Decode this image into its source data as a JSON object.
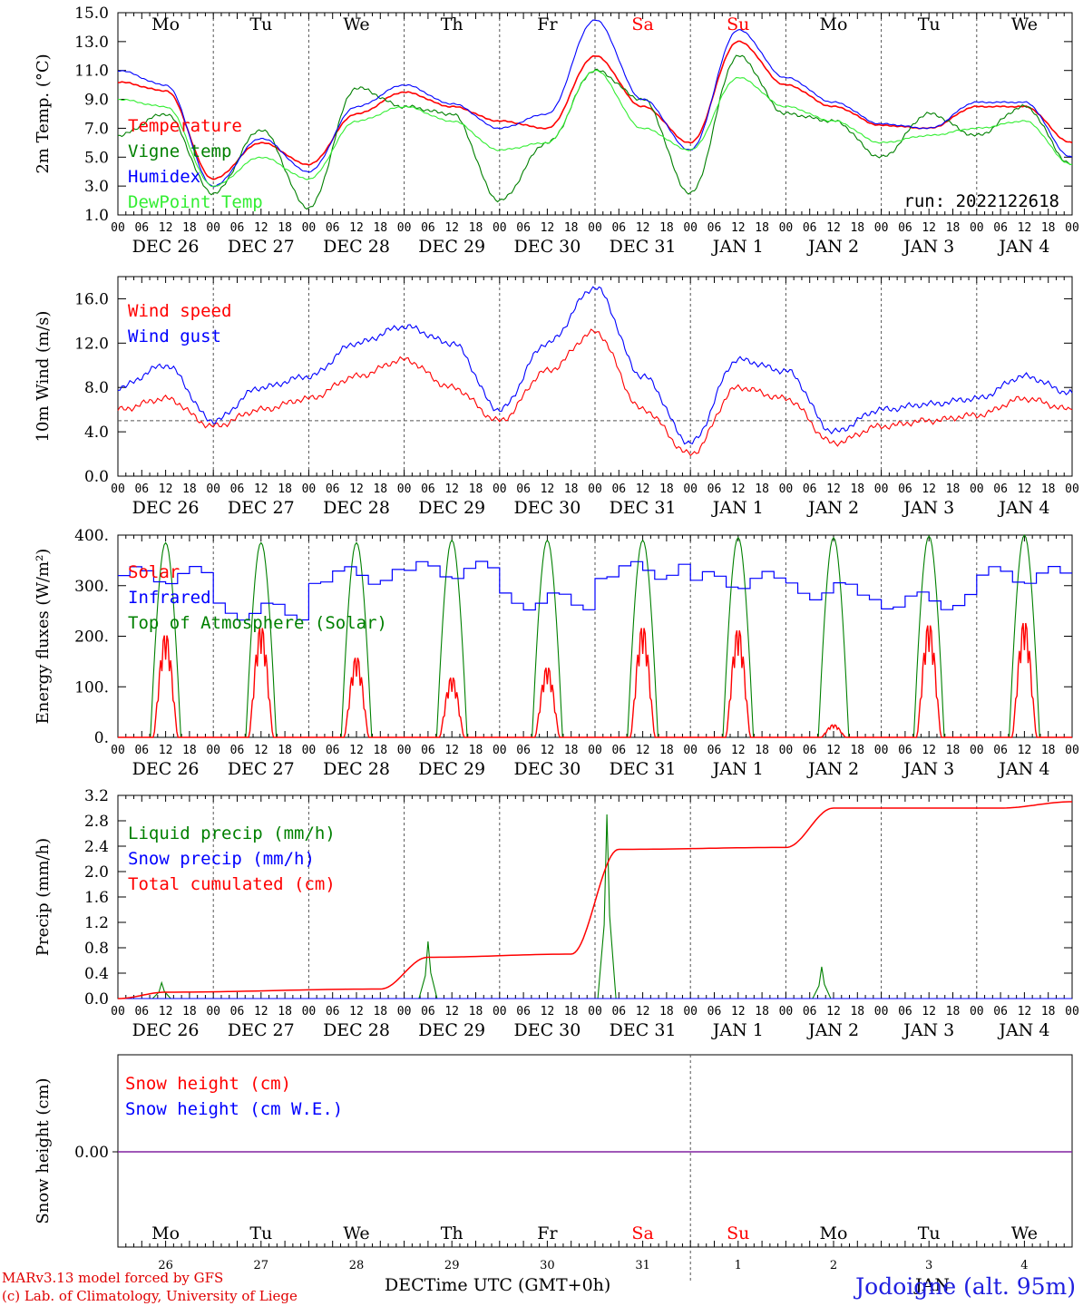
{
  "meteogram": {
    "station": "Jodoigne (alt. 95m)",
    "credits": [
      "MARv3.13 model forced by GFS",
      "(c) Lab. of Climatology, University of Liege"
    ],
    "time_axis_label": "DECTime UTC (GMT+0h)",
    "jan_label": "JAN",
    "run_label": "run: 2022122618"
  },
  "days": [
    {
      "weekday": "Mo",
      "date": "DEC 26",
      "day_num": "26",
      "weekend": false
    },
    {
      "weekday": "Tu",
      "date": "DEC 27",
      "day_num": "27",
      "weekend": false
    },
    {
      "weekday": "We",
      "date": "DEC 28",
      "day_num": "28",
      "weekend": false
    },
    {
      "weekday": "Th",
      "date": "DEC 29",
      "day_num": "29",
      "weekend": false
    },
    {
      "weekday": "Fr",
      "date": "DEC 30",
      "day_num": "30",
      "weekend": false
    },
    {
      "weekday": "Sa",
      "date": "DEC 31",
      "day_num": "31",
      "weekend": true
    },
    {
      "weekday": "Su",
      "date": "JAN  1",
      "day_num": "1",
      "weekend": true
    },
    {
      "weekday": "Mo",
      "date": "JAN  2",
      "day_num": "2",
      "weekend": false
    },
    {
      "weekday": "Tu",
      "date": "JAN  3",
      "day_num": "3",
      "weekend": false
    },
    {
      "weekday": "We",
      "date": "JAN  4",
      "day_num": "4",
      "weekend": false
    }
  ],
  "hour_ticks": [
    "00",
    "06",
    "12",
    "18"
  ],
  "colors": {
    "red": "#ff0000",
    "darkgreen": "#008000",
    "blue": "#0000ff",
    "lightgreen": "#33ee33",
    "purple": "#8020a0"
  },
  "chart_data": [
    {
      "type": "line",
      "ylabel": "2m Temp. (°C)",
      "ylim": [
        1.0,
        15.0
      ],
      "yticks": [
        "1.0",
        "3.0",
        "5.0",
        "7.0",
        "9.0",
        "11.0",
        "13.0",
        "15.0"
      ],
      "x": [
        "DEC 26 00",
        "DEC 26 12",
        "DEC 27 00",
        "DEC 27 12",
        "DEC 28 00",
        "DEC 28 12",
        "DEC 29 00",
        "DEC 29 12",
        "DEC 30 00",
        "DEC 30 12",
        "DEC 31 00",
        "DEC 31 12",
        "JAN 1 00",
        "JAN 1 12",
        "JAN 2 00",
        "JAN 2 12",
        "JAN 3 00",
        "JAN 3 12",
        "JAN 4 00",
        "JAN 4 12",
        "JAN 5 00"
      ],
      "series": [
        {
          "name": "Temperature",
          "color": "#ff0000",
          "values": [
            10.2,
            9.6,
            3.5,
            6.0,
            4.5,
            8.0,
            9.5,
            8.5,
            7.5,
            7.0,
            12.0,
            8.5,
            6.0,
            13.0,
            10.0,
            8.5,
            7.2,
            7.0,
            8.5,
            8.5,
            6.0
          ]
        },
        {
          "name": "Vigne temp",
          "color": "#008000",
          "values": [
            6.5,
            8.0,
            2.5,
            6.9,
            1.5,
            9.8,
            8.5,
            8.0,
            2.0,
            6.0,
            11.0,
            9.0,
            2.5,
            12.0,
            8.0,
            7.5,
            5.0,
            8.0,
            6.5,
            8.5,
            4.5
          ]
        },
        {
          "name": "Humidex",
          "color": "#0000ff",
          "values": [
            11.0,
            10.0,
            3.0,
            6.3,
            4.0,
            8.5,
            10.0,
            8.7,
            7.0,
            8.0,
            14.5,
            9.0,
            5.5,
            13.8,
            10.5,
            8.8,
            7.3,
            7.0,
            8.8,
            8.8,
            5.0
          ]
        },
        {
          "name": "DewPoint Temp",
          "color": "#33ee33",
          "values": [
            9.0,
            8.5,
            3.0,
            5.0,
            3.5,
            7.5,
            8.5,
            7.5,
            5.5,
            6.0,
            11.0,
            7.0,
            5.5,
            10.5,
            8.5,
            7.5,
            6.0,
            6.5,
            7.0,
            7.5,
            4.5
          ]
        }
      ]
    },
    {
      "type": "line",
      "ylabel": "10m Wind (m/s)",
      "ylim": [
        0.0,
        18.0
      ],
      "yticks": [
        "0.0",
        "4.0",
        "8.0",
        "12.0",
        "16.0"
      ],
      "reference_line": 5.0,
      "x": [
        "DEC 26 00",
        "DEC 26 12",
        "DEC 27 00",
        "DEC 27 12",
        "DEC 28 00",
        "DEC 28 12",
        "DEC 29 00",
        "DEC 29 12",
        "DEC 30 00",
        "DEC 30 12",
        "DEC 31 00",
        "DEC 31 12",
        "JAN 1 00",
        "JAN 1 12",
        "JAN 2 00",
        "JAN 2 12",
        "JAN 3 00",
        "JAN 3 12",
        "JAN 4 00",
        "JAN 4 12",
        "JAN 5 00"
      ],
      "series": [
        {
          "name": "Wind speed",
          "color": "#ff0000",
          "values": [
            6.0,
            7.0,
            4.5,
            6.0,
            7.0,
            9.0,
            10.5,
            8.0,
            5.0,
            9.5,
            13.0,
            6.0,
            2.0,
            8.0,
            7.0,
            3.0,
            4.5,
            5.0,
            5.5,
            7.0,
            6.0
          ]
        },
        {
          "name": "Wind gust",
          "color": "#0000ff",
          "values": [
            8.0,
            10.0,
            5.0,
            8.0,
            9.0,
            12.0,
            13.5,
            12.0,
            6.0,
            12.0,
            17.0,
            9.0,
            3.0,
            10.5,
            9.5,
            4.0,
            6.0,
            6.5,
            7.0,
            9.0,
            7.5
          ]
        }
      ]
    },
    {
      "type": "line",
      "ylabel": "Energy fluxes (W/m²)",
      "ylim": [
        0.0,
        400.0
      ],
      "yticks": [
        "0.",
        "100.",
        "200.",
        "300.",
        "400."
      ],
      "series": [
        {
          "name": "Solar",
          "color": "#ff0000",
          "daily_peak": [
            205,
            220,
            160,
            120,
            140,
            220,
            215,
            25,
            225,
            230
          ]
        },
        {
          "name": "Infrared",
          "color": "#0000ff",
          "daily_level": [
            320,
            250,
            320,
            330,
            270,
            330,
            310,
            290,
            270,
            320
          ]
        },
        {
          "name": "Top of Atmosphere (Solar)",
          "color": "#008000",
          "daily_peak": [
            385,
            385,
            385,
            390,
            390,
            390,
            395,
            395,
            398,
            400
          ]
        }
      ]
    },
    {
      "type": "line",
      "ylabel": "Precip (mm/h)",
      "ylim": [
        0.0,
        3.2
      ],
      "yticks": [
        "0.0",
        "0.4",
        "0.8",
        "1.2",
        "1.6",
        "2.0",
        "2.4",
        "2.8",
        "3.2"
      ],
      "series": [
        {
          "name": "Liquid precip (mm/h)",
          "color": "#008000",
          "peaks": [
            {
              "x": "DEC 26 11",
              "y": 0.25
            },
            {
              "x": "DEC 29 06",
              "y": 0.9
            },
            {
              "x": "DEC 31 03",
              "y": 2.9
            },
            {
              "x": "JAN 2 09",
              "y": 0.5
            }
          ]
        },
        {
          "name": "Snow precip (mm/h)",
          "color": "#0000ff",
          "values": [
            0.0
          ]
        },
        {
          "name": "Total cumulated (cm)",
          "color": "#ff0000",
          "points": [
            {
              "x": "DEC 26 00",
              "y": 0.0
            },
            {
              "x": "DEC 26 12",
              "y": 0.1
            },
            {
              "x": "DEC 28 18",
              "y": 0.15
            },
            {
              "x": "DEC 29 06",
              "y": 0.65
            },
            {
              "x": "DEC 30 18",
              "y": 0.7
            },
            {
              "x": "DEC 31 06",
              "y": 2.35
            },
            {
              "x": "JAN 2 00",
              "y": 2.38
            },
            {
              "x": "JAN 2 12",
              "y": 3.0
            },
            {
              "x": "JAN 4 06",
              "y": 3.0
            },
            {
              "x": "JAN 5 00",
              "y": 3.1
            }
          ]
        }
      ]
    },
    {
      "type": "line",
      "ylabel": "Snow height (cm)",
      "yticks": [
        "0.00"
      ],
      "series": [
        {
          "name": "Snow height (cm)",
          "color": "#ff0000",
          "values": [
            0.0
          ]
        },
        {
          "name": "Snow height (cm W.E.)",
          "color": "#0000ff",
          "values": [
            0.0
          ]
        }
      ]
    }
  ]
}
